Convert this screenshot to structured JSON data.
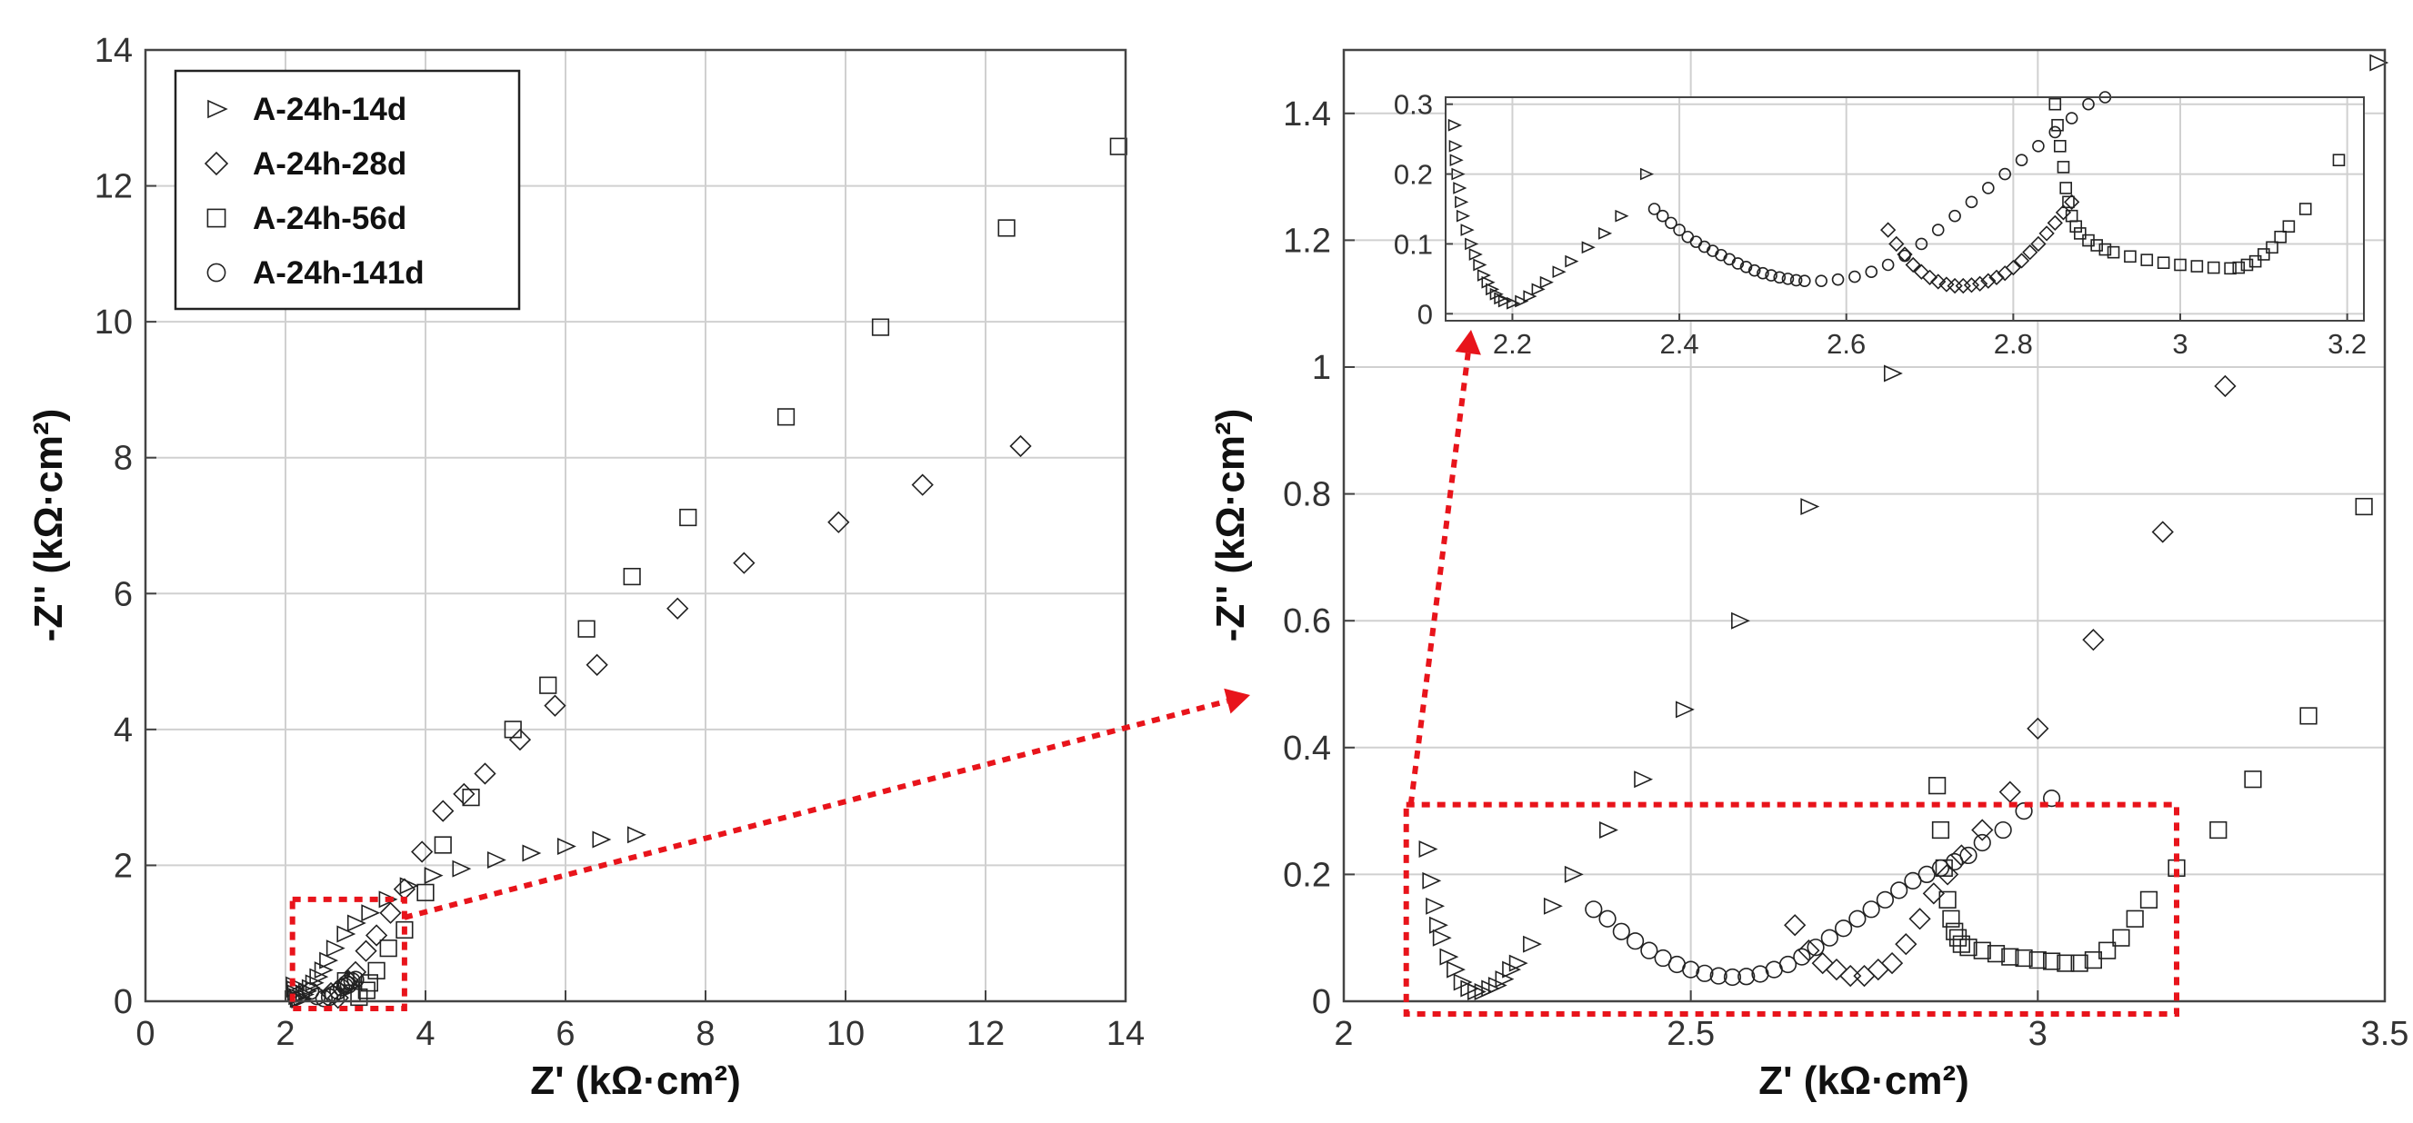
{
  "figure": {
    "legend": [
      "A-24h-14d",
      "A-24h-28d",
      "A-24h-56d",
      "A-24h-141d"
    ]
  },
  "chart_data": [
    {
      "id": "overview",
      "type": "scatter",
      "xlabel": "Z' (kΩ·cm²)",
      "ylabel": "-Z'' (kΩ·cm²)",
      "xlim": [
        0,
        14
      ],
      "ylim": [
        0,
        14
      ],
      "xticks": [
        "0",
        "2",
        "4",
        "6",
        "8",
        "10",
        "12",
        "14"
      ],
      "yticks": [
        "0",
        "2",
        "4",
        "6",
        "8",
        "10",
        "12",
        "14"
      ],
      "grid": true,
      "legend_position": "top-left",
      "annotation": "dashed red box around Z' 2.1–3.7, -Z'' 0–1.5 with arrow to right panel",
      "series": [
        {
          "name": "A-24h-14d",
          "marker": "triangle-right",
          "x": [
            2.12,
            2.13,
            2.14,
            2.16,
            2.18,
            2.2,
            2.23,
            2.26,
            2.3,
            2.35,
            2.4,
            2.46,
            2.53,
            2.6,
            2.7,
            2.85,
            3.0,
            3.2,
            3.45,
            3.75,
            4.1,
            4.5,
            5.0,
            5.5,
            6.0,
            6.5,
            7.0
          ],
          "y": [
            0.24,
            0.18,
            0.12,
            0.07,
            0.03,
            0.02,
            0.04,
            0.1,
            0.15,
            0.2,
            0.27,
            0.36,
            0.46,
            0.6,
            0.78,
            0.99,
            1.15,
            1.3,
            1.5,
            1.7,
            1.85,
            1.95,
            2.08,
            2.18,
            2.28,
            2.38,
            2.45
          ]
        },
        {
          "name": "A-24h-28d",
          "marker": "diamond",
          "x": [
            2.65,
            2.75,
            2.9,
            3.0,
            3.15,
            3.3,
            3.5,
            3.7,
            3.95,
            4.25,
            4.55,
            4.85,
            5.35,
            5.85,
            6.45,
            7.6,
            8.55,
            9.9,
            11.1,
            12.5
          ],
          "y": [
            0.12,
            0.05,
            0.3,
            0.43,
            0.74,
            0.97,
            1.3,
            1.65,
            2.2,
            2.8,
            3.05,
            3.35,
            3.85,
            4.35,
            4.95,
            5.78,
            6.45,
            7.05,
            7.6,
            8.17
          ]
        },
        {
          "name": "A-24h-56d",
          "marker": "square",
          "x": [
            2.86,
            2.95,
            3.05,
            3.16,
            3.2,
            3.3,
            3.47,
            3.7,
            4.0,
            4.25,
            4.65,
            5.25,
            5.75,
            6.3,
            6.95,
            7.75,
            9.15,
            10.5,
            12.3,
            13.9
          ],
          "y": [
            0.3,
            0.12,
            0.06,
            0.16,
            0.27,
            0.45,
            0.78,
            1.05,
            1.6,
            2.3,
            3.0,
            4.0,
            4.65,
            5.48,
            6.25,
            7.12,
            8.6,
            9.92,
            11.38,
            12.58
          ]
        },
        {
          "name": "A-24h-141d",
          "marker": "circle",
          "x": [
            2.36,
            2.45,
            2.55,
            2.63,
            2.68,
            2.75,
            2.8,
            2.85,
            2.87,
            2.9,
            2.95,
            3.0
          ],
          "y": [
            0.15,
            0.07,
            0.04,
            0.06,
            0.1,
            0.15,
            0.2,
            0.22,
            0.26,
            0.24,
            0.3,
            0.32
          ]
        }
      ]
    },
    {
      "id": "zoom",
      "type": "scatter",
      "xlabel": "Z' (kΩ·cm²)",
      "ylabel": "-Z'' (kΩ·cm²)",
      "xlim": [
        2,
        3.5
      ],
      "ylim": [
        0,
        1.5
      ],
      "xticks": [
        "2",
        "2.5",
        "3",
        "3.5"
      ],
      "yticks": [
        "0",
        "0.2",
        "0.4",
        "0.6",
        "0.8",
        "1",
        "1.2",
        "1.4"
      ],
      "grid": true,
      "annotation": "dashed red box around Z' 2.1–3.2, -Z'' 0–0.3 with arrow to inset",
      "series": [
        {
          "name": "A-24h-14d",
          "marker": "triangle-right",
          "x": [
            2.12,
            2.125,
            2.13,
            2.135,
            2.14,
            2.15,
            2.16,
            2.17,
            2.18,
            2.19,
            2.2,
            2.21,
            2.22,
            2.23,
            2.24,
            2.25,
            2.27,
            2.3,
            2.33,
            2.38,
            2.43,
            2.49,
            2.57,
            2.67,
            2.79,
            3.49
          ],
          "y": [
            0.24,
            0.19,
            0.15,
            0.12,
            0.1,
            0.07,
            0.05,
            0.03,
            0.02,
            0.015,
            0.015,
            0.02,
            0.025,
            0.035,
            0.05,
            0.06,
            0.09,
            0.15,
            0.2,
            0.27,
            0.35,
            0.46,
            0.6,
            0.78,
            0.99,
            1.48
          ]
        },
        {
          "name": "A-24h-28d",
          "marker": "diamond",
          "x": [
            2.65,
            2.67,
            2.69,
            2.71,
            2.73,
            2.75,
            2.77,
            2.79,
            2.81,
            2.83,
            2.85,
            2.87,
            2.89,
            2.92,
            2.96,
            3.0,
            3.08,
            3.18,
            3.27
          ],
          "y": [
            0.12,
            0.08,
            0.06,
            0.05,
            0.04,
            0.04,
            0.05,
            0.06,
            0.09,
            0.13,
            0.17,
            0.2,
            0.23,
            0.27,
            0.33,
            0.43,
            0.57,
            0.74,
            0.97
          ]
        },
        {
          "name": "A-24h-56d",
          "marker": "square",
          "x": [
            2.855,
            2.86,
            2.865,
            2.87,
            2.875,
            2.88,
            2.885,
            2.89,
            2.9,
            2.92,
            2.94,
            2.96,
            2.98,
            3.0,
            3.02,
            3.04,
            3.06,
            3.08,
            3.1,
            3.12,
            3.14,
            3.16,
            3.2,
            3.26,
            3.31,
            3.39,
            3.47
          ],
          "y": [
            0.34,
            0.27,
            0.21,
            0.16,
            0.13,
            0.11,
            0.1,
            0.09,
            0.085,
            0.08,
            0.075,
            0.07,
            0.068,
            0.065,
            0.063,
            0.06,
            0.06,
            0.065,
            0.08,
            0.1,
            0.13,
            0.16,
            0.21,
            0.27,
            0.35,
            0.45,
            0.78
          ]
        },
        {
          "name": "A-24h-141d",
          "marker": "circle",
          "x": [
            2.36,
            2.38,
            2.4,
            2.42,
            2.44,
            2.46,
            2.48,
            2.5,
            2.52,
            2.54,
            2.56,
            2.58,
            2.6,
            2.62,
            2.64,
            2.66,
            2.68,
            2.7,
            2.72,
            2.74,
            2.76,
            2.78,
            2.8,
            2.82,
            2.84,
            2.86,
            2.88,
            2.9,
            2.92,
            2.95,
            2.98,
            3.02
          ],
          "y": [
            0.145,
            0.13,
            0.11,
            0.095,
            0.08,
            0.068,
            0.058,
            0.05,
            0.044,
            0.04,
            0.038,
            0.039,
            0.043,
            0.05,
            0.058,
            0.07,
            0.085,
            0.1,
            0.115,
            0.13,
            0.145,
            0.16,
            0.175,
            0.19,
            0.2,
            0.21,
            0.22,
            0.23,
            0.25,
            0.27,
            0.3,
            0.32
          ]
        }
      ]
    },
    {
      "id": "inset",
      "type": "scatter",
      "xlabel": "",
      "ylabel": "",
      "xlim": [
        2.12,
        3.22
      ],
      "ylim": [
        -0.01,
        0.31
      ],
      "xticks": [
        "2.2",
        "2.4",
        "2.6",
        "2.8",
        "3",
        "3.2"
      ],
      "yticks": [
        "0",
        "0.1",
        "0.2",
        "0.3"
      ],
      "grid": true,
      "series": [
        {
          "name": "A-24h-14d",
          "marker": "triangle-right",
          "x": [
            2.13,
            2.131,
            2.132,
            2.134,
            2.136,
            2.138,
            2.14,
            2.145,
            2.15,
            2.155,
            2.16,
            2.165,
            2.17,
            2.175,
            2.18,
            2.185,
            2.19,
            2.2,
            2.21,
            2.22,
            2.23,
            2.24,
            2.255,
            2.27,
            2.29,
            2.31,
            2.33,
            2.36
          ],
          "y": [
            0.27,
            0.24,
            0.22,
            0.2,
            0.18,
            0.16,
            0.14,
            0.12,
            0.1,
            0.085,
            0.07,
            0.055,
            0.045,
            0.035,
            0.028,
            0.022,
            0.018,
            0.015,
            0.018,
            0.025,
            0.035,
            0.045,
            0.06,
            0.075,
            0.095,
            0.115,
            0.14,
            0.2
          ]
        },
        {
          "name": "A-24h-28d",
          "marker": "diamond",
          "x": [
            2.65,
            2.66,
            2.67,
            2.68,
            2.69,
            2.7,
            2.71,
            2.72,
            2.73,
            2.74,
            2.75,
            2.76,
            2.77,
            2.78,
            2.79,
            2.8,
            2.81,
            2.82,
            2.83,
            2.84,
            2.85,
            2.86,
            2.87
          ],
          "y": [
            0.12,
            0.1,
            0.085,
            0.07,
            0.06,
            0.052,
            0.046,
            0.042,
            0.04,
            0.04,
            0.041,
            0.043,
            0.047,
            0.052,
            0.058,
            0.066,
            0.076,
            0.088,
            0.1,
            0.115,
            0.13,
            0.145,
            0.16
          ]
        },
        {
          "name": "A-24h-56d",
          "marker": "square",
          "x": [
            2.85,
            2.853,
            2.856,
            2.86,
            2.863,
            2.866,
            2.87,
            2.875,
            2.88,
            2.89,
            2.9,
            2.91,
            2.92,
            2.94,
            2.96,
            2.98,
            3.0,
            3.02,
            3.04,
            3.06,
            3.07,
            3.08,
            3.09,
            3.1,
            3.11,
            3.12,
            3.13,
            3.15,
            3.19
          ],
          "y": [
            0.3,
            0.27,
            0.24,
            0.21,
            0.18,
            0.16,
            0.14,
            0.125,
            0.115,
            0.105,
            0.098,
            0.092,
            0.088,
            0.082,
            0.077,
            0.073,
            0.07,
            0.068,
            0.066,
            0.065,
            0.066,
            0.07,
            0.075,
            0.085,
            0.095,
            0.11,
            0.125,
            0.15,
            0.22
          ]
        },
        {
          "name": "A-24h-141d",
          "marker": "circle",
          "x": [
            2.37,
            2.38,
            2.39,
            2.4,
            2.41,
            2.42,
            2.43,
            2.44,
            2.45,
            2.46,
            2.47,
            2.48,
            2.49,
            2.5,
            2.51,
            2.52,
            2.53,
            2.54,
            2.55,
            2.57,
            2.59,
            2.61,
            2.63,
            2.65,
            2.67,
            2.69,
            2.71,
            2.73,
            2.75,
            2.77,
            2.79,
            2.81,
            2.83,
            2.85,
            2.87,
            2.89,
            2.91,
            2.93
          ],
          "y": [
            0.15,
            0.14,
            0.13,
            0.12,
            0.11,
            0.103,
            0.096,
            0.09,
            0.084,
            0.078,
            0.072,
            0.067,
            0.062,
            0.058,
            0.055,
            0.052,
            0.05,
            0.048,
            0.047,
            0.047,
            0.049,
            0.053,
            0.06,
            0.07,
            0.083,
            0.1,
            0.12,
            0.14,
            0.16,
            0.18,
            0.2,
            0.22,
            0.24,
            0.26,
            0.28,
            0.3,
            0.31,
            0.32
          ]
        }
      ]
    }
  ]
}
